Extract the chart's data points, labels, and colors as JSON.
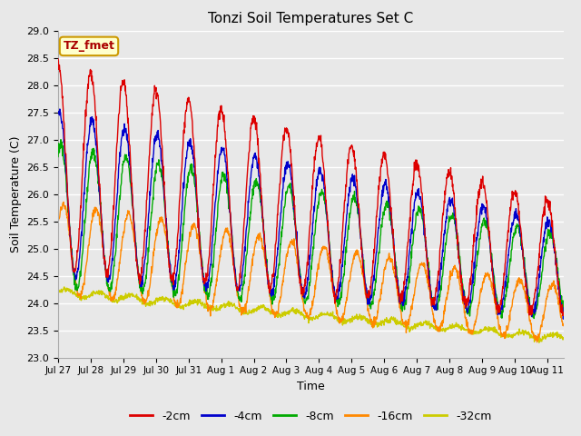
{
  "title": "Tonzi Soil Temperatures Set C",
  "xlabel": "Time",
  "ylabel": "Soil Temperature (C)",
  "ylim": [
    23.0,
    29.0
  ],
  "background_color": "#e8e8e8",
  "plot_bg_color": "#e8e8e8",
  "grid_color": "#ffffff",
  "legend_label": "TZ_fmet",
  "legend_bg": "#ffffcc",
  "legend_border": "#cc9900",
  "series_colors": {
    "-2cm": "#dd0000",
    "-4cm": "#0000cc",
    "-8cm": "#00aa00",
    "-16cm": "#ff8800",
    "-32cm": "#cccc00"
  },
  "series_linewidth": 1.0,
  "num_days": 15.5,
  "points_per_day": 96,
  "yticks": [
    23.0,
    23.5,
    24.0,
    24.5,
    25.0,
    25.5,
    26.0,
    26.5,
    27.0,
    27.5,
    28.0,
    28.5,
    29.0
  ],
  "xtick_labels": [
    "Jul 27",
    "Jul 28",
    "Jul 29",
    "Jul 30",
    "Jul 31",
    "Aug 1",
    "Aug 2",
    "Aug 3",
    "Aug 4",
    "Aug 5",
    "Aug 6",
    "Aug 7",
    "Aug 8",
    "Aug 9",
    "Aug 10",
    "Aug 11"
  ]
}
